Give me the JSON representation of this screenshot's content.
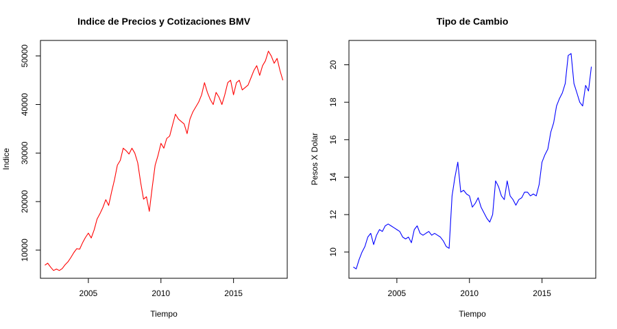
{
  "chart_data": [
    {
      "type": "line",
      "title": "Indice de Precios y Cotizaciones BMV",
      "xlabel": "Tiempo",
      "ylabel": "Indice",
      "xlim": [
        2001.7,
        2018.7
      ],
      "ylim": [
        4200,
        53200
      ],
      "xticks": [
        2005,
        2010,
        2015
      ],
      "yticks": [
        10000,
        20000,
        30000,
        40000,
        50000
      ],
      "series": [
        {
          "color": "#ff0000",
          "x": [
            2002.0,
            2002.2,
            2002.4,
            2002.6,
            2002.8,
            2003.0,
            2003.2,
            2003.4,
            2003.6,
            2003.8,
            2004.0,
            2004.2,
            2004.4,
            2004.6,
            2004.8,
            2005.0,
            2005.2,
            2005.4,
            2005.6,
            2005.8,
            2006.0,
            2006.2,
            2006.4,
            2006.6,
            2006.8,
            2007.0,
            2007.2,
            2007.4,
            2007.6,
            2007.8,
            2008.0,
            2008.2,
            2008.4,
            2008.6,
            2008.8,
            2009.0,
            2009.2,
            2009.4,
            2009.6,
            2009.8,
            2010.0,
            2010.2,
            2010.4,
            2010.6,
            2010.8,
            2011.0,
            2011.2,
            2011.4,
            2011.6,
            2011.8,
            2012.0,
            2012.2,
            2012.4,
            2012.6,
            2012.8,
            2013.0,
            2013.2,
            2013.4,
            2013.6,
            2013.8,
            2014.0,
            2014.2,
            2014.4,
            2014.6,
            2014.8,
            2015.0,
            2015.2,
            2015.4,
            2015.6,
            2015.8,
            2016.0,
            2016.2,
            2016.4,
            2016.6,
            2016.8,
            2017.0,
            2017.2,
            2017.4,
            2017.6,
            2017.8,
            2018.0,
            2018.2,
            2018.4
          ],
          "values": [
            6900,
            7300,
            6500,
            5800,
            6100,
            5800,
            6200,
            7000,
            7600,
            8500,
            9500,
            10300,
            10200,
            11500,
            12600,
            13500,
            12500,
            14200,
            16400,
            17500,
            18800,
            20400,
            19200,
            22000,
            24500,
            27500,
            28500,
            31000,
            30500,
            29800,
            31000,
            30000,
            28000,
            24000,
            20500,
            21000,
            18000,
            23000,
            27500,
            29500,
            32000,
            31000,
            33000,
            33500,
            35800,
            38000,
            37000,
            36500,
            36000,
            34000,
            37000,
            38500,
            39500,
            40500,
            42000,
            44500,
            42500,
            41000,
            40000,
            42500,
            41500,
            40000,
            42000,
            44500,
            45000,
            42000,
            44500,
            45000,
            43000,
            43500,
            44000,
            45500,
            47000,
            48000,
            46000,
            48000,
            49000,
            51000,
            50000,
            48500,
            49500,
            47000,
            45000
          ]
        }
      ]
    },
    {
      "type": "line",
      "title": "Tipo de Cambio",
      "xlabel": "Tiempo",
      "ylabel": "Pesos X Dolar",
      "xlim": [
        2001.7,
        2018.7
      ],
      "ylim": [
        8.6,
        21.3
      ],
      "xticks": [
        2005,
        2010,
        2015
      ],
      "yticks": [
        10,
        12,
        14,
        16,
        18,
        20
      ],
      "series": [
        {
          "color": "#0000ff",
          "x": [
            2002.0,
            2002.2,
            2002.4,
            2002.6,
            2002.8,
            2003.0,
            2003.2,
            2003.4,
            2003.6,
            2003.8,
            2004.0,
            2004.2,
            2004.4,
            2004.6,
            2004.8,
            2005.0,
            2005.2,
            2005.4,
            2005.6,
            2005.8,
            2006.0,
            2006.2,
            2006.4,
            2006.6,
            2006.8,
            2007.0,
            2007.2,
            2007.4,
            2007.6,
            2007.8,
            2008.0,
            2008.2,
            2008.4,
            2008.6,
            2008.8,
            2009.0,
            2009.2,
            2009.4,
            2009.6,
            2009.8,
            2010.0,
            2010.2,
            2010.4,
            2010.6,
            2010.8,
            2011.0,
            2011.2,
            2011.4,
            2011.6,
            2011.8,
            2012.0,
            2012.2,
            2012.4,
            2012.6,
            2012.8,
            2013.0,
            2013.2,
            2013.4,
            2013.6,
            2013.8,
            2014.0,
            2014.2,
            2014.4,
            2014.6,
            2014.8,
            2015.0,
            2015.2,
            2015.4,
            2015.6,
            2015.8,
            2016.0,
            2016.2,
            2016.4,
            2016.6,
            2016.8,
            2017.0,
            2017.2,
            2017.4,
            2017.6,
            2017.8,
            2018.0,
            2018.2,
            2018.4
          ],
          "values": [
            9.2,
            9.1,
            9.6,
            10.0,
            10.3,
            10.8,
            11.0,
            10.4,
            10.9,
            11.2,
            11.1,
            11.4,
            11.5,
            11.4,
            11.3,
            11.2,
            11.1,
            10.8,
            10.7,
            10.8,
            10.5,
            11.2,
            11.4,
            11.0,
            10.9,
            11.0,
            11.1,
            10.9,
            11.0,
            10.9,
            10.8,
            10.6,
            10.3,
            10.2,
            13.0,
            14.0,
            14.8,
            13.2,
            13.3,
            13.1,
            13.0,
            12.4,
            12.6,
            12.9,
            12.4,
            12.1,
            11.8,
            11.6,
            12.0,
            13.8,
            13.5,
            13.0,
            12.8,
            13.8,
            13.0,
            12.8,
            12.5,
            12.8,
            12.9,
            13.2,
            13.2,
            13.0,
            13.1,
            13.0,
            13.6,
            14.8,
            15.2,
            15.5,
            16.4,
            16.9,
            17.8,
            18.2,
            18.5,
            19.0,
            20.5,
            20.6,
            19.0,
            18.5,
            18.0,
            17.8,
            18.9,
            18.6,
            19.9
          ]
        }
      ]
    }
  ]
}
